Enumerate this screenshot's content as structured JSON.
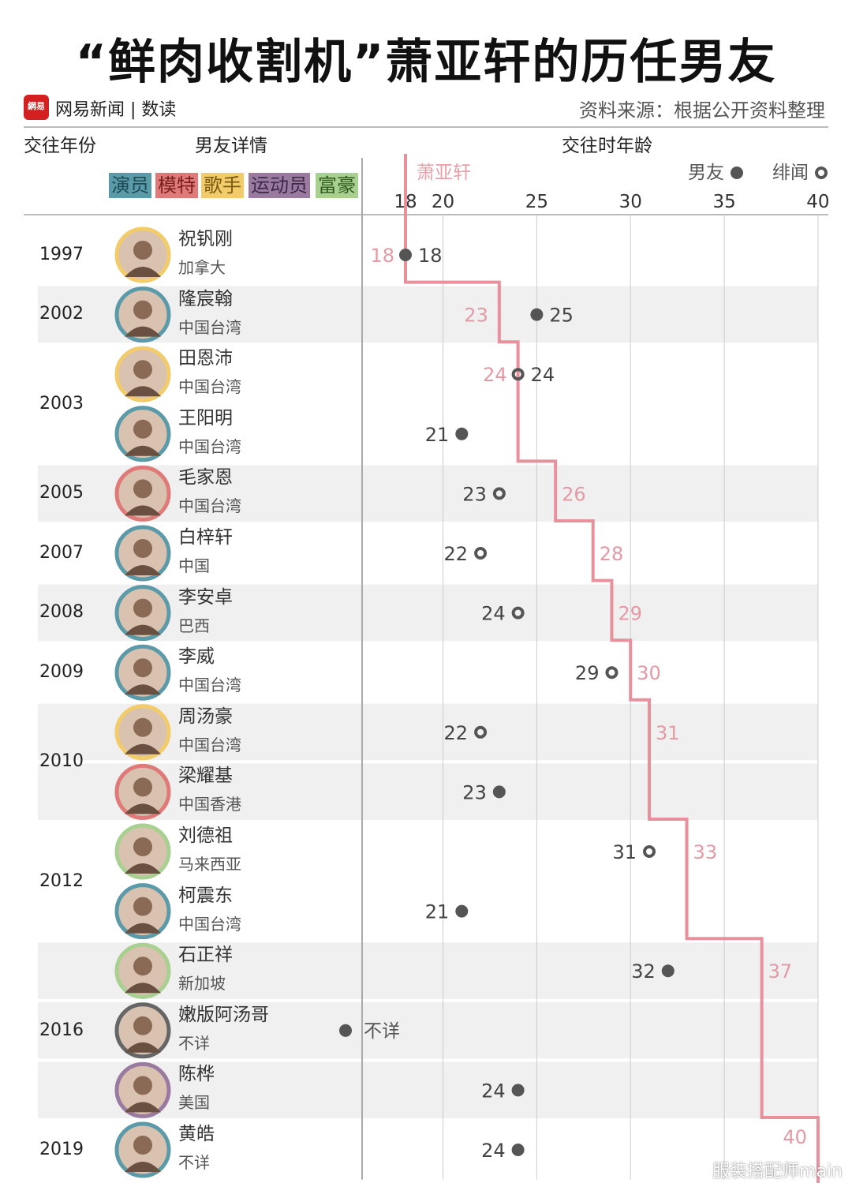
{
  "title": "“鲜肉收割机”萧亚轩的历任男友",
  "logo_text": "網易",
  "brand": "网易新闻 | 数读",
  "source": "资料来源：根据公开资料整理",
  "headers": {
    "year": "交往年份",
    "details": "男友详情",
    "age": "交往时年龄"
  },
  "categories": [
    {
      "label": "演员",
      "color": "#5b9aa8",
      "text": "#1d4a55"
    },
    {
      "label": "模特",
      "color": "#e07a78",
      "text": "#7a1f1f"
    },
    {
      "label": "歌手",
      "color": "#f2cc6a",
      "text": "#7a5a10"
    },
    {
      "label": "运动员",
      "color": "#9a7aa0",
      "text": "#3d2845"
    },
    {
      "label": "富豪",
      "color": "#a8d090",
      "text": "#2e5a1e"
    }
  ],
  "chart_data": {
    "type": "scatter",
    "xlabel": "交往时年龄",
    "xticks": [
      18,
      20,
      25,
      30,
      35,
      40
    ],
    "xlim": [
      18,
      40
    ],
    "line_series_name": "萧亚轩",
    "legend": {
      "boyfriend": "男友",
      "rumor": "绯闻",
      "placement": "top-right"
    },
    "colors": {
      "line": "#e8909c",
      "dot": "#555555",
      "band": "#f0f0f0"
    },
    "unknown_label": "不详",
    "rows": [
      {
        "year": "1997",
        "name": "祝钒刚",
        "country": "加拿大",
        "type": "歌手",
        "age": 18,
        "kind": "boyfriend",
        "xiao_age": 18,
        "xiao_label": "18"
      },
      {
        "year": "2002",
        "name": "隆宸翰",
        "country": "中国台湾",
        "type": "演员",
        "age": 25,
        "kind": "boyfriend",
        "xiao_age": 23,
        "xiao_label": "23"
      },
      {
        "year": "2003",
        "name": "田恩沛",
        "country": "中国台湾",
        "type": "歌手",
        "age": 24,
        "kind": "rumor",
        "xiao_age": 24,
        "xiao_label": "24"
      },
      {
        "year": "",
        "name": "王阳明",
        "country": "中国台湾",
        "type": "演员",
        "age": 21,
        "kind": "boyfriend",
        "xiao_age": 24,
        "xiao_label": ""
      },
      {
        "year": "2005",
        "name": "毛家恩",
        "country": "中国台湾",
        "type": "模特",
        "age": 23,
        "kind": "rumor",
        "xiao_age": 26,
        "xiao_label": "26"
      },
      {
        "year": "2007",
        "name": "白梓轩",
        "country": "中国",
        "type": "演员",
        "age": 22,
        "kind": "rumor",
        "xiao_age": 28,
        "xiao_label": "28"
      },
      {
        "year": "2008",
        "name": "李安卓",
        "country": "巴西",
        "type": "演员",
        "age": 24,
        "kind": "rumor",
        "xiao_age": 29,
        "xiao_label": "29"
      },
      {
        "year": "2009",
        "name": "李威",
        "country": "中国台湾",
        "type": "演员",
        "age": 29,
        "kind": "rumor",
        "xiao_age": 30,
        "xiao_label": "30"
      },
      {
        "year": "2010",
        "name": "周汤豪",
        "country": "中国台湾",
        "type": "歌手",
        "age": 22,
        "kind": "rumor",
        "xiao_age": 31,
        "xiao_label": "31"
      },
      {
        "year": "",
        "name": "梁耀基",
        "country": "中国香港",
        "type": "模特",
        "age": 23,
        "kind": "boyfriend",
        "xiao_age": 31,
        "xiao_label": ""
      },
      {
        "year": "2012",
        "name": "刘德祖",
        "country": "马来西亚",
        "type": "富豪",
        "age": 31,
        "kind": "rumor",
        "xiao_age": 33,
        "xiao_label": "33"
      },
      {
        "year": "",
        "name": "柯震东",
        "country": "中国台湾",
        "type": "演员",
        "age": 21,
        "kind": "boyfriend",
        "xiao_age": 33,
        "xiao_label": ""
      },
      {
        "year": "",
        "name": "石正祥",
        "country": "新加坡",
        "type": "富豪",
        "age": 32,
        "kind": "boyfriend",
        "xiao_age": 37,
        "xiao_label": "37"
      },
      {
        "year": "2016",
        "name": "嫩版阿汤哥",
        "country": "不详",
        "type": "",
        "age": null,
        "kind": "boyfriend",
        "xiao_age": 37,
        "xiao_label": ""
      },
      {
        "year": "",
        "name": "陈桦",
        "country": "美国",
        "type": "运动员",
        "age": 24,
        "kind": "boyfriend",
        "xiao_age": 37,
        "xiao_label": ""
      },
      {
        "year": "2019",
        "name": "黄皓",
        "country": "不详",
        "type": "演员",
        "age": 24,
        "kind": "boyfriend",
        "xiao_age": 40,
        "xiao_label": "40"
      }
    ]
  },
  "watermark": "服装搭配师main"
}
